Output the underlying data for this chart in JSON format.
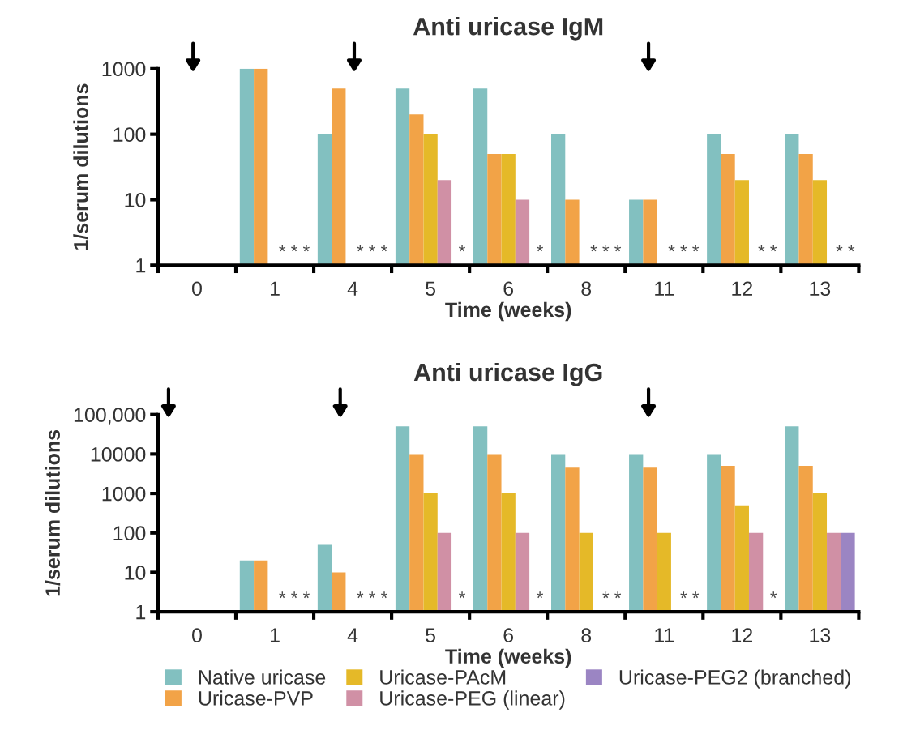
{
  "chart_data": [
    {
      "type": "bar",
      "title": "Anti uricase IgM",
      "xlabel": "Time (weeks)",
      "ylabel": "1/serum dilutions",
      "categories": [
        "0",
        "1",
        "4",
        "5",
        "6",
        "8",
        "11",
        "12",
        "13"
      ],
      "series": [
        {
          "color": "#82c0c0",
          "values": [
            null,
            1000,
            100,
            500,
            500,
            100,
            10,
            100,
            100
          ]
        },
        {
          "color": "#f2a347",
          "values": [
            null,
            1000,
            500,
            200,
            50,
            10,
            10,
            50,
            50
          ]
        },
        {
          "color": "#e5b928",
          "values": [
            null,
            null,
            null,
            100,
            50,
            null,
            null,
            20,
            20
          ]
        },
        {
          "color": "#d090a5",
          "values": [
            null,
            null,
            null,
            20,
            10,
            null,
            null,
            null,
            null
          ]
        },
        {
          "color": "#9b85c3",
          "values": [
            null,
            null,
            null,
            null,
            null,
            null,
            null,
            null,
            null
          ]
        }
      ],
      "log": true,
      "ylim": [
        1,
        1000
      ],
      "yticks": [
        1,
        10,
        100,
        1000
      ],
      "grid": false,
      "legend": false,
      "annotations": [
        "* * *",
        "* * *",
        "*",
        "*",
        "* * *",
        "* * *",
        "* *",
        "* *"
      ]
    },
    {
      "type": "bar",
      "title": "Anti uricase IgG",
      "xlabel": "Time (weeks)",
      "ylabel": "1/serum dilutions",
      "categories": [
        "0",
        "1",
        "4",
        "5",
        "6",
        "8",
        "11",
        "12",
        "13"
      ],
      "series": [
        {
          "name": "Native uricase",
          "color": "#82c0c0",
          "values": [
            null,
            20,
            50,
            50000,
            50000,
            10000,
            10000,
            10000,
            50000
          ]
        },
        {
          "name": "Uricase-PVP",
          "color": "#f2a347",
          "values": [
            null,
            20,
            10,
            10000,
            10000,
            4500,
            4500,
            5000,
            5000
          ]
        },
        {
          "name": "Uricase-PAcM",
          "color": "#e5b928",
          "values": [
            null,
            null,
            null,
            1000,
            1000,
            100,
            100,
            500,
            1000
          ]
        },
        {
          "name": "Uricase-PEG (linear)",
          "color": "#d090a5",
          "values": [
            null,
            null,
            null,
            100,
            100,
            null,
            null,
            100,
            100
          ]
        },
        {
          "name": "Uricase-PEG2 (branched)",
          "color": "#9b85c3",
          "values": [
            null,
            null,
            null,
            null,
            null,
            null,
            null,
            null,
            100
          ]
        }
      ],
      "log": true,
      "ylim": [
        1,
        100000
      ],
      "yticks": [
        1,
        10,
        100,
        1000,
        10000,
        {
          "value": 100000,
          "label": "100,000"
        }
      ],
      "grid": false,
      "legend": "bottom",
      "annotations": [
        "* * *",
        "* * *",
        "*",
        "*",
        "* *",
        "* *",
        "*"
      ]
    }
  ]
}
